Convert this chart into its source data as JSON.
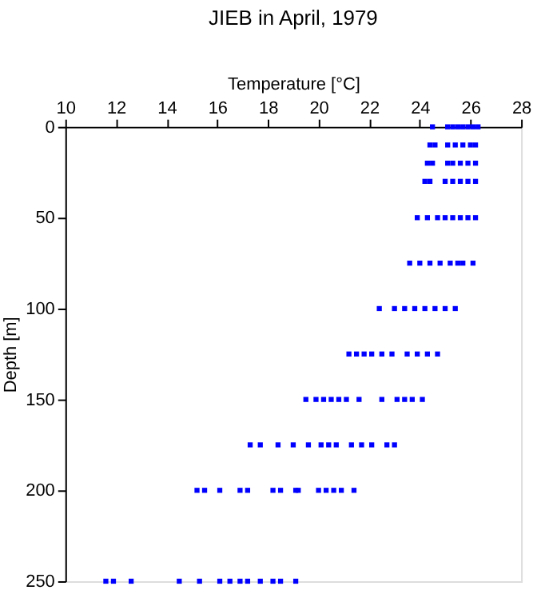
{
  "chart_data": {
    "type": "scatter",
    "title": "JIEB in April, 1979",
    "xlabel": "Temperature [°C]",
    "ylabel": "Depth [m]",
    "xlim": [
      10,
      28
    ],
    "xticks": [
      10,
      12,
      14,
      16,
      18,
      20,
      22,
      24,
      26,
      28
    ],
    "ylim": [
      250,
      0
    ],
    "yticks": [
      0,
      50,
      100,
      150,
      200,
      250
    ],
    "grid": false,
    "legend": false,
    "marker": "square",
    "series": [
      {
        "color": "#0000ff",
        "x": [
          24.5,
          25.1,
          25.3,
          25.5,
          25.7,
          25.9,
          26.1,
          26.3,
          24.4,
          24.6,
          25.1,
          25.4,
          25.7,
          26.0,
          26.2,
          24.3,
          24.5,
          25.1,
          25.3,
          25.6,
          25.9,
          26.2,
          24.2,
          24.4,
          25.0,
          25.3,
          25.6,
          25.9,
          26.2,
          23.9,
          24.3,
          24.7,
          25.0,
          25.3,
          25.6,
          25.9,
          26.2,
          23.6,
          24.0,
          24.4,
          24.8,
          25.2,
          25.5,
          25.7,
          26.1,
          22.4,
          23.0,
          23.4,
          23.8,
          24.2,
          24.6,
          25.0,
          25.4,
          21.2,
          21.5,
          21.8,
          22.1,
          22.5,
          22.9,
          23.5,
          23.9,
          24.3,
          24.7,
          19.5,
          19.9,
          20.2,
          20.5,
          20.8,
          21.1,
          21.6,
          22.5,
          23.1,
          23.4,
          23.7,
          24.1,
          17.3,
          17.7,
          18.4,
          19.0,
          19.6,
          20.1,
          20.4,
          20.7,
          21.3,
          21.7,
          22.1,
          22.7,
          23.0,
          15.2,
          15.5,
          16.1,
          16.9,
          17.2,
          18.2,
          18.5,
          19.1,
          19.2,
          20.0,
          20.3,
          20.6,
          20.9,
          21.4,
          11.6,
          11.9,
          12.6,
          14.5,
          15.3,
          16.1,
          16.5,
          16.9,
          17.2,
          17.7,
          18.2,
          18.5,
          19.1
        ],
        "values": [
          0,
          0,
          0,
          0,
          0,
          0,
          0,
          0,
          10,
          10,
          10,
          10,
          10,
          10,
          10,
          20,
          20,
          20,
          20,
          20,
          20,
          20,
          30,
          30,
          30,
          30,
          30,
          30,
          30,
          50,
          50,
          50,
          50,
          50,
          50,
          50,
          50,
          75,
          75,
          75,
          75,
          75,
          75,
          75,
          75,
          100,
          100,
          100,
          100,
          100,
          100,
          100,
          100,
          125,
          125,
          125,
          125,
          125,
          125,
          125,
          125,
          125,
          125,
          150,
          150,
          150,
          150,
          150,
          150,
          150,
          150,
          150,
          150,
          150,
          150,
          175,
          175,
          175,
          175,
          175,
          175,
          175,
          175,
          175,
          175,
          175,
          175,
          175,
          200,
          200,
          200,
          200,
          200,
          200,
          200,
          200,
          200,
          200,
          200,
          200,
          200,
          200,
          250,
          250,
          250,
          250,
          250,
          250,
          250,
          250,
          250,
          250,
          250,
          250,
          250
        ]
      }
    ]
  }
}
